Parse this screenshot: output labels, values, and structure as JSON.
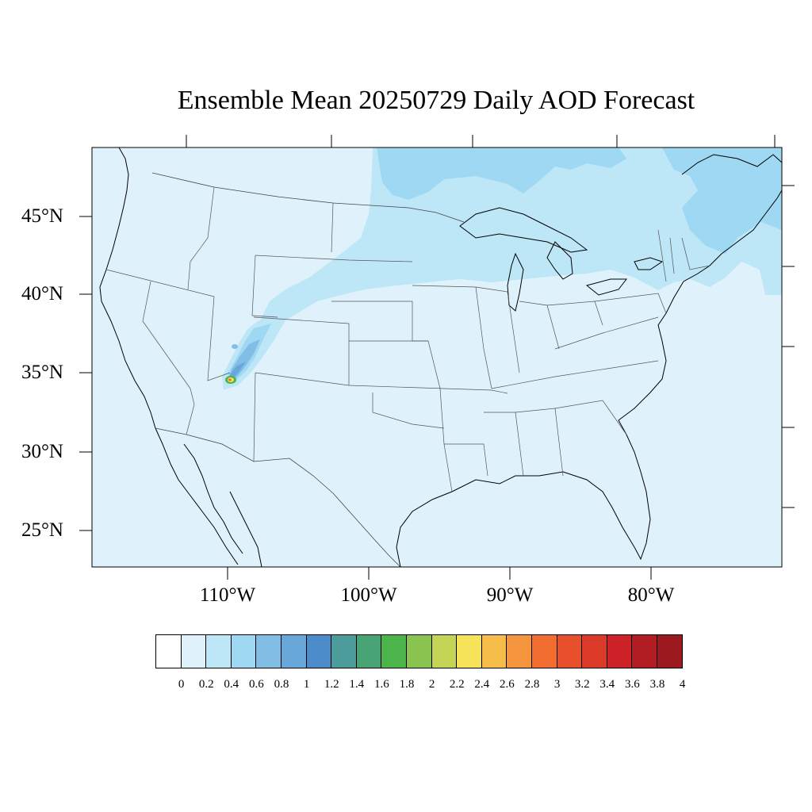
{
  "title": "Ensemble Mean 20250729 Daily AOD Forecast",
  "lat_labels": [
    "45°N",
    "40°N",
    "35°N",
    "30°N",
    "25°N"
  ],
  "lon_labels": [
    "110°W",
    "100°W",
    "90°W",
    "80°W"
  ],
  "colorbar": {
    "labels": [
      "0",
      "0.2",
      "0.4",
      "0.6",
      "0.8",
      "1",
      "1.2",
      "1.4",
      "1.6",
      "1.8",
      "2",
      "2.2",
      "2.4",
      "2.6",
      "2.8",
      "3",
      "3.2",
      "3.4",
      "3.6",
      "3.8",
      "4"
    ],
    "colors": [
      "#ffffff",
      "#dff2fb",
      "#bde6f7",
      "#9ed8f3",
      "#82bde6",
      "#67a7da",
      "#4c8ccb",
      "#4c9c9c",
      "#48a474",
      "#4bb44a",
      "#88c44f",
      "#c4d454",
      "#f7e35a",
      "#f7bd4b",
      "#f5953e",
      "#f26d30",
      "#e8502b",
      "#dc3a28",
      "#cc2228",
      "#b21d24",
      "#9b191f"
    ]
  },
  "map_colors": {
    "background": "#dff2fb",
    "level_04": "#bde6f7",
    "level_06": "#9ed8f3",
    "level_08": "#82bde6",
    "level_10": "#67a7da",
    "level_18": "#4bb44a",
    "level_24": "#f7e35a",
    "level_30": "#f26d30"
  }
}
